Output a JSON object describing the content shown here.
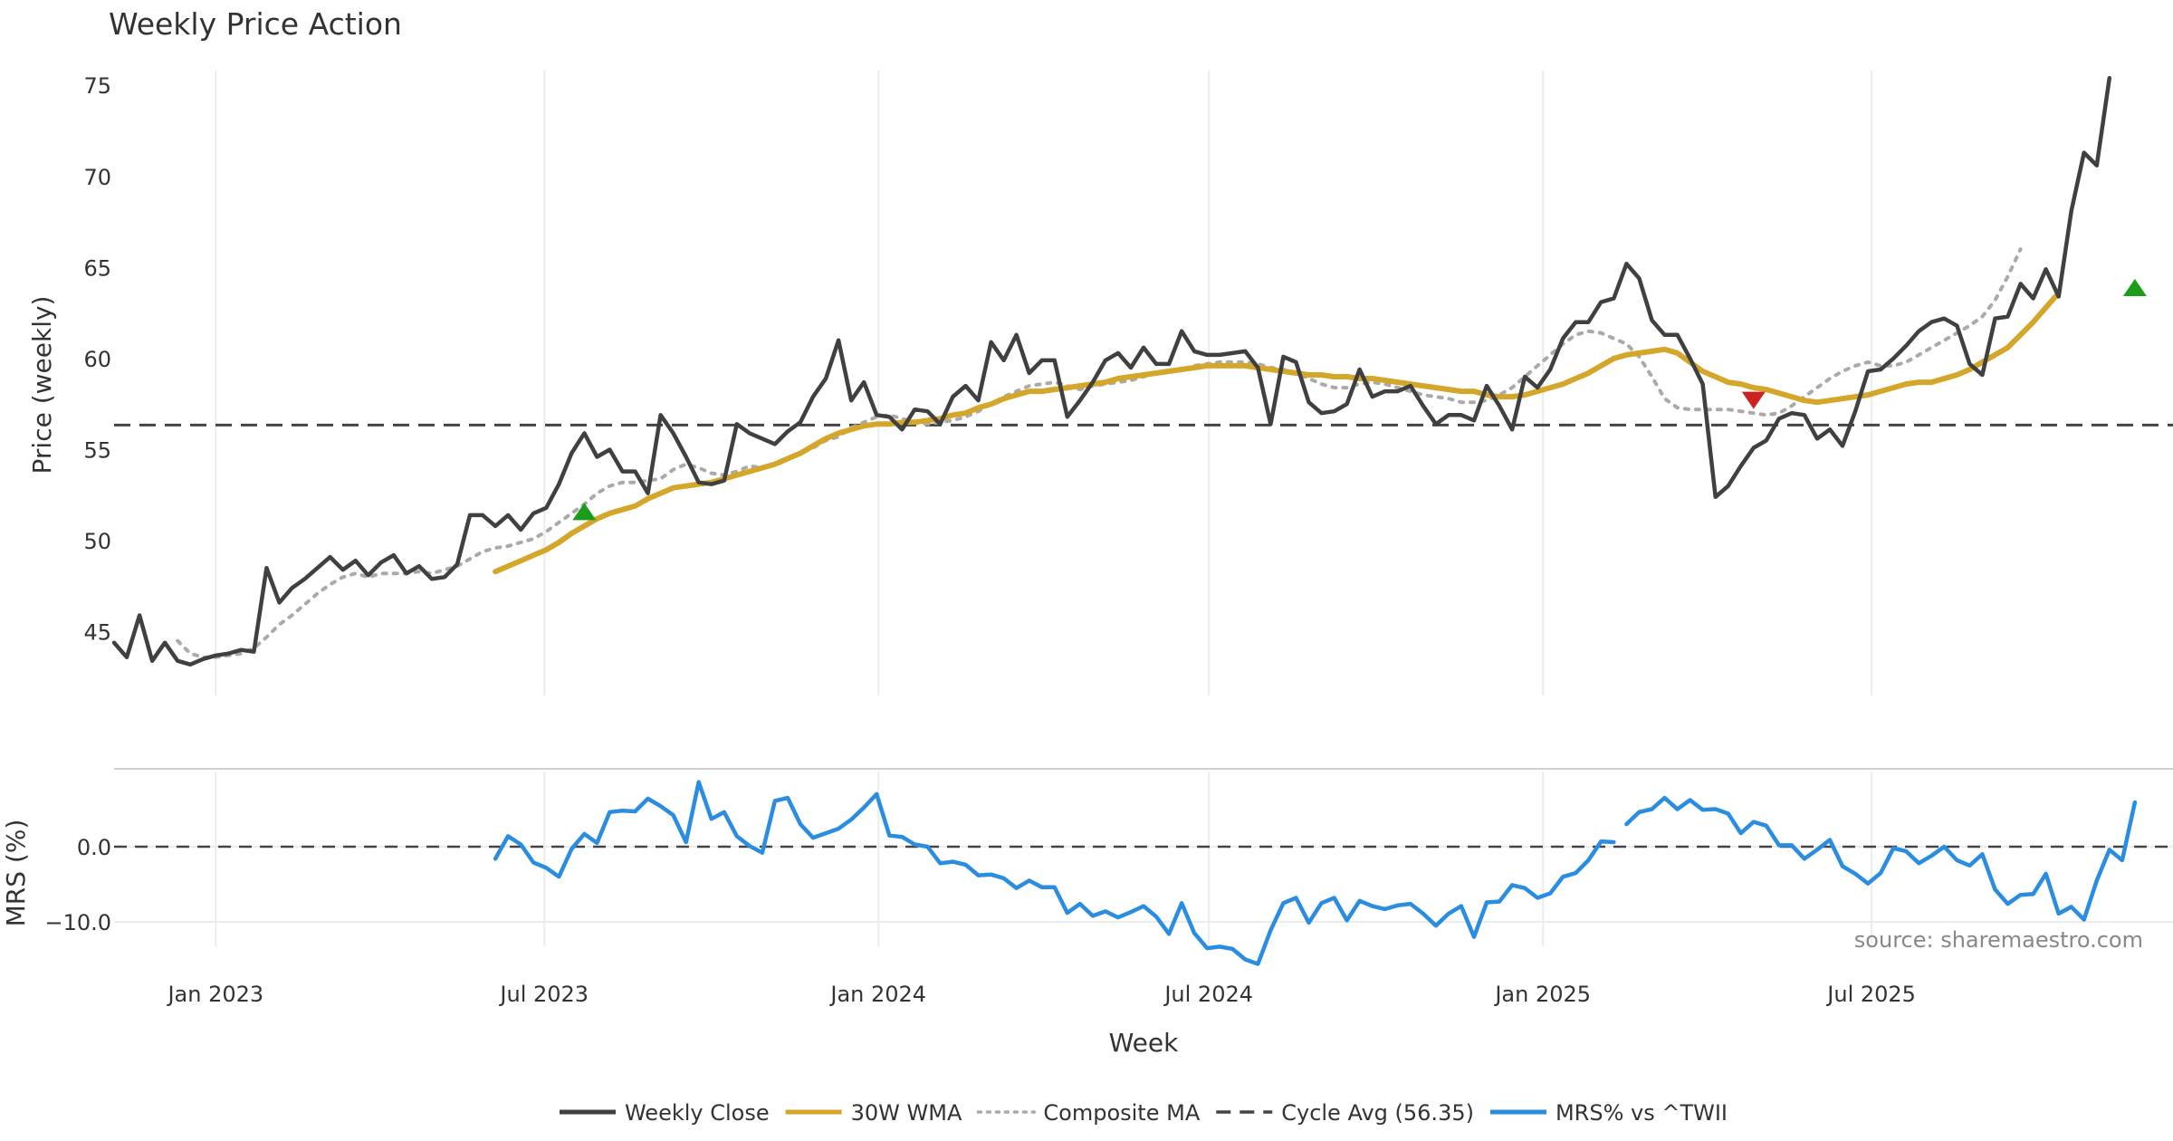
{
  "chart_data": {
    "type": "line",
    "title": "Weekly Price Action",
    "xlabel": "Week",
    "source": "source: sharemaestro.com",
    "x_range": [
      "2022-11-06",
      "2025-12-14"
    ],
    "x_ticks": [
      {
        "date": "2023-01-01",
        "label": "Jan 2023"
      },
      {
        "date": "2023-07-01",
        "label": "Jul 2023"
      },
      {
        "date": "2024-01-01",
        "label": "Jan 2024"
      },
      {
        "date": "2024-07-01",
        "label": "Jul 2024"
      },
      {
        "date": "2025-01-01",
        "label": "Jan 2025"
      },
      {
        "date": "2025-07-01",
        "label": "Jul 2025"
      }
    ],
    "price_panel": {
      "ylabel": "Price (weekly)",
      "ylim": [
        41.5,
        76.8
      ],
      "yticks": [
        45,
        50,
        55,
        60,
        65,
        70,
        75
      ],
      "cycle_avg": 56.35,
      "series": [
        {
          "name": "Weekly Close",
          "color": "#404040",
          "style": "solid",
          "width": 4.5,
          "start": "2022-11-06",
          "values": [
            44.4,
            43.6,
            45.9,
            43.4,
            44.4,
            43.4,
            43.2,
            43.5,
            43.7,
            43.8,
            44.0,
            43.9,
            48.5,
            46.6,
            47.4,
            47.9,
            48.5,
            49.1,
            48.4,
            48.9,
            48.1,
            48.8,
            49.2,
            48.2,
            48.6,
            47.9,
            48.0,
            48.7,
            51.4,
            51.4,
            50.8,
            51.4,
            50.6,
            51.5,
            51.8,
            53.1,
            54.8,
            55.9,
            54.6,
            55.0,
            53.8,
            53.8,
            52.6,
            56.9,
            55.9,
            54.6,
            53.2,
            53.1,
            53.3,
            56.4,
            55.9,
            55.6,
            55.3,
            56.0,
            56.5,
            57.9,
            58.9,
            61.0,
            57.7,
            58.7,
            56.9,
            56.8,
            56.1,
            57.2,
            57.1,
            56.4,
            57.9,
            58.5,
            57.7,
            60.9,
            59.9,
            61.3,
            59.2,
            59.9,
            59.9,
            56.8,
            57.7,
            58.7,
            59.9,
            60.3,
            59.5,
            60.6,
            59.7,
            59.7,
            61.5,
            60.4,
            60.2,
            60.2,
            60.3,
            60.4,
            59.5,
            56.4,
            60.1,
            59.8,
            57.6,
            57.0,
            57.1,
            57.5,
            59.4,
            57.9,
            58.2,
            58.2,
            58.5,
            57.4,
            56.4,
            56.9,
            56.9,
            56.6,
            58.5,
            57.4,
            56.1,
            59.0,
            58.4,
            59.4,
            61.1,
            62.0,
            62.0,
            63.1,
            63.3,
            65.2,
            64.4,
            62.1,
            61.3,
            61.3,
            60.0,
            58.6,
            52.4,
            53.0,
            54.1,
            55.1,
            55.5,
            56.7,
            57.0,
            56.9,
            55.6,
            56.1,
            55.2,
            57.1,
            59.3,
            59.4,
            60.0,
            60.7,
            61.5,
            62.0,
            62.2,
            61.8,
            59.7,
            59.1,
            62.2,
            62.3,
            64.1,
            63.3,
            64.9,
            63.4,
            68.1,
            71.3,
            70.6,
            75.4
          ]
        },
        {
          "name": "30W WMA",
          "color": "#d4a62a",
          "style": "solid",
          "width": 6,
          "start": "2023-06-04",
          "values": [
            48.3,
            48.6,
            48.9,
            49.2,
            49.5,
            49.9,
            50.4,
            50.8,
            51.2,
            51.5,
            51.7,
            51.9,
            52.3,
            52.6,
            52.9,
            53.0,
            53.1,
            53.2,
            53.4,
            53.6,
            53.8,
            54.0,
            54.2,
            54.5,
            54.8,
            55.2,
            55.6,
            55.9,
            56.1,
            56.3,
            56.4,
            56.4,
            56.5,
            56.5,
            56.6,
            56.7,
            56.9,
            57.0,
            57.3,
            57.5,
            57.8,
            58.0,
            58.2,
            58.2,
            58.3,
            58.4,
            58.5,
            58.6,
            58.7,
            58.9,
            59.0,
            59.1,
            59.2,
            59.3,
            59.4,
            59.5,
            59.6,
            59.6,
            59.6,
            59.6,
            59.5,
            59.4,
            59.3,
            59.2,
            59.1,
            59.1,
            59.0,
            59.0,
            58.9,
            58.9,
            58.8,
            58.7,
            58.6,
            58.5,
            58.4,
            58.3,
            58.2,
            58.2,
            58.0,
            57.9,
            57.9,
            58.0,
            58.2,
            58.4,
            58.6,
            58.9,
            59.2,
            59.6,
            60.0,
            60.2,
            60.3,
            60.4,
            60.5,
            60.3,
            59.8,
            59.3,
            59.0,
            58.7,
            58.6,
            58.4,
            58.3,
            58.1,
            57.9,
            57.7,
            57.6,
            57.7,
            57.8,
            57.9,
            58.0,
            58.2,
            58.4,
            58.6,
            58.7,
            58.7,
            58.9,
            59.1,
            59.4,
            59.8,
            60.2,
            60.6,
            61.3,
            62.0,
            62.8,
            63.6
          ]
        },
        {
          "name": "Composite MA",
          "color": "#aaaaaa",
          "style": "dotted",
          "width": 4,
          "start": "2022-12-11",
          "values": [
            44.5,
            43.8,
            43.6,
            43.6,
            43.7,
            43.8,
            44.1,
            44.7,
            45.4,
            45.9,
            46.5,
            47.1,
            47.6,
            48.0,
            48.2,
            48.0,
            48.2,
            48.2,
            48.2,
            48.3,
            48.2,
            48.4,
            48.6,
            49.0,
            49.4,
            49.6,
            49.7,
            49.9,
            50.1,
            50.5,
            51.0,
            51.5,
            52.0,
            52.6,
            53.0,
            53.2,
            53.2,
            53.3,
            53.4,
            53.9,
            54.2,
            54.0,
            53.7,
            53.6,
            53.8,
            54.1,
            54.0,
            54.2,
            54.5,
            54.8,
            55.1,
            55.5,
            55.7,
            56.2,
            56.5,
            56.8,
            56.9,
            56.7,
            56.5,
            56.4,
            56.5,
            56.6,
            56.8,
            57.1,
            57.5,
            57.9,
            58.2,
            58.5,
            58.6,
            58.7,
            58.5,
            58.3,
            58.5,
            58.6,
            58.7,
            58.8,
            59.0,
            59.2,
            59.3,
            59.4,
            59.6,
            59.7,
            59.8,
            59.8,
            59.8,
            59.7,
            59.5,
            59.4,
            59.2,
            58.9,
            58.6,
            58.4,
            58.4,
            58.6,
            58.7,
            58.6,
            58.4,
            58.2,
            58.0,
            57.9,
            57.8,
            57.6,
            57.6,
            57.7,
            58.0,
            58.4,
            59.0,
            59.6,
            60.2,
            60.8,
            61.3,
            61.5,
            61.4,
            61.1,
            60.8,
            60.1,
            59.0,
            57.8,
            57.3,
            57.2,
            57.2,
            57.2,
            57.2,
            57.1,
            57.0,
            56.9,
            57.0,
            57.4,
            57.9,
            58.4,
            58.9,
            59.3,
            59.6,
            59.8,
            59.6,
            59.6,
            59.8,
            60.2,
            60.6,
            61.0,
            61.4,
            61.8,
            62.3,
            63.2,
            64.5,
            66.0
          ]
        }
      ],
      "markers": [
        {
          "date": "2023-07-23",
          "value": 51.6,
          "kind": "buy",
          "color": "#1a9e1a"
        },
        {
          "date": "2025-04-27",
          "value": 57.7,
          "kind": "sell",
          "color": "#cc2222"
        },
        {
          "date": "2025-11-23",
          "value": 63.9,
          "kind": "buy",
          "color": "#1a9e1a"
        }
      ]
    },
    "mrs_panel": {
      "ylabel": "MRS (%)",
      "ylim": [
        -16.5,
        10.0
      ],
      "yticks": [
        0.0,
        -10.0
      ],
      "ytick_labels": [
        "0.0",
        "−10.0"
      ],
      "series": [
        {
          "name": "MRS% vs ^TWII",
          "color": "#2b8de0",
          "style": "solid",
          "width": 4.5,
          "segments": [
            {
              "start": "2023-06-04",
              "values": [
                -1.6,
                1.4,
                0.3,
                -2.1,
                -2.8,
                -4.0,
                -0.3,
                1.7,
                0.5,
                4.6,
                4.8,
                4.7,
                6.4,
                5.4,
                4.2,
                0.6,
                8.6,
                3.7,
                4.6,
                1.4,
                0.1,
                -0.8,
                6.1,
                6.5,
                3.0,
                1.2,
                1.8,
                2.4,
                3.6,
                5.2,
                7.0,
                1.5,
                1.3,
                0.3,
                0.0,
                -2.2,
                -2.0,
                -2.4,
                -3.8,
                -3.7,
                -4.2,
                -5.5,
                -4.5,
                -5.4,
                -5.4,
                -8.8,
                -7.6,
                -9.2,
                -8.6,
                -9.4,
                -8.7,
                -7.9,
                -9.3,
                -11.6,
                -7.5,
                -11.5,
                -13.5,
                -13.3,
                -13.6,
                -15.0,
                -15.6,
                -11.1,
                -7.5,
                -6.8,
                -10.1,
                -7.5,
                -6.8,
                -9.8,
                -7.2,
                -7.9,
                -8.3,
                -7.8,
                -7.6,
                -8.9,
                -10.5,
                -8.9,
                -7.9,
                -12.0,
                -7.4,
                -7.3,
                -5.1,
                -5.5,
                -6.8,
                -6.2,
                -4.0,
                -3.5,
                -1.8,
                0.7,
                0.6
              ]
            },
            {
              "start": "2025-02-16",
              "values": [
                3.0,
                4.6,
                5.0,
                6.5,
                5.0,
                6.2,
                4.9,
                5.0,
                4.4,
                1.8,
                3.3,
                2.8,
                0.2,
                0.2,
                -1.6,
                -0.4,
                0.9,
                -2.6,
                -3.6,
                -4.9,
                -3.5,
                -0.2,
                -0.6,
                -2.2,
                -1.2,
                0.0,
                -1.8,
                -2.5,
                -1.0,
                -5.7,
                -7.6,
                -6.4,
                -6.3,
                -3.6,
                -8.9,
                -8.0,
                -9.7,
                -4.5,
                -0.4,
                -1.8,
                5.9
              ]
            }
          ]
        }
      ]
    },
    "legend": [
      {
        "label": "Weekly Close",
        "color": "#404040",
        "style": "solid"
      },
      {
        "label": "30W WMA",
        "color": "#d4a62a",
        "style": "solid"
      },
      {
        "label": "Composite MA",
        "color": "#aaaaaa",
        "style": "dotted"
      },
      {
        "label": "Cycle Avg (56.35)",
        "color": "#444444",
        "style": "dashed"
      },
      {
        "label": "MRS% vs ^TWII",
        "color": "#2b8de0",
        "style": "solid"
      }
    ]
  }
}
